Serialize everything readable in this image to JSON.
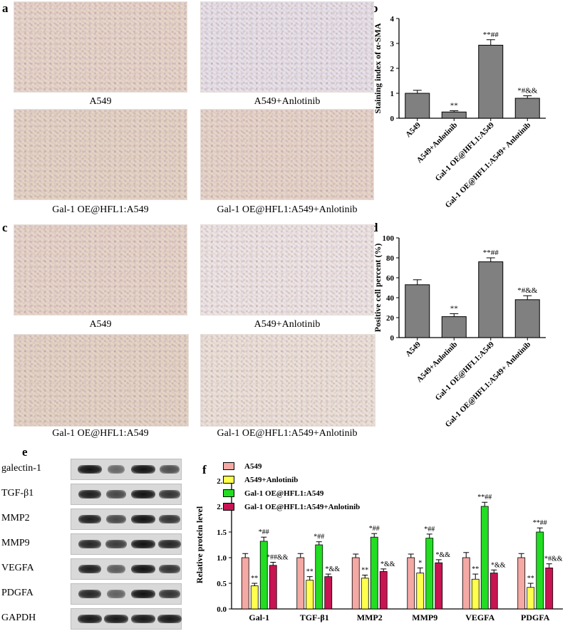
{
  "panels": {
    "a": "a",
    "b": "b",
    "c": "c",
    "d": "d",
    "e": "e",
    "f": "f"
  },
  "ihc_labels": {
    "a1": "A549",
    "a2": "A549+Anlotinib",
    "a3": "Gal-1 OE@HFL1:A549",
    "a4": "Gal-1 OE@HFL1:A549+Anlotinib",
    "c1": "A549",
    "c2": "A549+Anlotinib",
    "c3": "Gal-1 OE@HFL1:A549",
    "c4": "Gal-1 OE@HFL1:A549+Anlotinib"
  },
  "western_blot": {
    "labels": [
      "galectin-1",
      "TGF-β1",
      "MMP2",
      "MMP9",
      "VEGFA",
      "PDGFA",
      "GAPDH"
    ],
    "band_intensity": [
      [
        1.0,
        0.35,
        1.0,
        0.55
      ],
      [
        0.9,
        0.6,
        1.0,
        0.75
      ],
      [
        0.9,
        0.6,
        1.0,
        0.75
      ],
      [
        0.85,
        0.7,
        1.0,
        0.85
      ],
      [
        0.9,
        0.45,
        1.0,
        0.75
      ],
      [
        0.85,
        0.4,
        1.0,
        0.75
      ],
      [
        0.95,
        0.95,
        0.95,
        0.95
      ]
    ]
  },
  "colors": {
    "bar_gray": "#808080",
    "A549": "#f4a9a4",
    "A549_Anlotinib": "#ffff4d",
    "GalOE": "#22dd22",
    "GalOE_Anlotinib": "#c81452"
  },
  "chart_data": [
    {
      "type": "bar",
      "categories": [
        "A549",
        "A549+Anlotinib",
        "Gal-1 OE@HFL1:A549",
        "Gal-1 OE@HFL1:A549+ Anlotinib"
      ],
      "values": [
        1.0,
        0.25,
        2.93,
        0.8
      ],
      "errors": [
        0.12,
        0.05,
        0.22,
        0.1
      ],
      "annotations": [
        "",
        "**",
        "**##",
        "*#&&"
      ],
      "ylabel": "Staining index of α-SMA",
      "ylim": [
        0,
        4
      ],
      "yticks": [
        "0",
        "1",
        "2",
        "3",
        "4"
      ]
    },
    {
      "type": "bar",
      "categories": [
        "A549",
        "A549+Anlotinib",
        "Gal-1 OE@HFL1:A549",
        "Gal-1 OE@HFL1:A549+ Anlotinib"
      ],
      "values": [
        53,
        21,
        76,
        38
      ],
      "errors": [
        5,
        3,
        4,
        4
      ],
      "annotations": [
        "",
        "**",
        "**##",
        "*#&&"
      ],
      "ylabel": "Positive cell percent (%)",
      "ylim": [
        0,
        100
      ],
      "yticks": [
        "0",
        "20",
        "40",
        "60",
        "80",
        "100"
      ]
    },
    {
      "type": "bar",
      "categories": [
        "Gal-1",
        "TGF-β1",
        "MMP2",
        "MMP9",
        "VEGFA",
        "PDGFA"
      ],
      "ylabel": "Relative protein level",
      "ylim": [
        0,
        2.5
      ],
      "yticks": [
        "0.0",
        "0.5",
        "1.0",
        "1.5",
        "2.0",
        "2.5"
      ],
      "series": [
        {
          "name": "A549",
          "values": [
            1.0,
            1.0,
            1.0,
            1.0,
            1.0,
            1.0
          ],
          "errors": [
            0.08,
            0.08,
            0.07,
            0.07,
            0.1,
            0.08
          ],
          "annotations": [
            "",
            "",
            "",
            "",
            "",
            ""
          ]
        },
        {
          "name": "A549+Anlotinib",
          "values": [
            0.45,
            0.56,
            0.6,
            0.7,
            0.58,
            0.42
          ],
          "errors": [
            0.05,
            0.07,
            0.06,
            0.1,
            0.1,
            0.08
          ],
          "annotations": [
            "**",
            "**",
            "**",
            "*",
            "**",
            "**"
          ]
        },
        {
          "name": "Gal-1 OE@HFL1:A549",
          "values": [
            1.32,
            1.25,
            1.4,
            1.38,
            2.0,
            1.5
          ],
          "errors": [
            0.08,
            0.06,
            0.07,
            0.08,
            0.08,
            0.08
          ],
          "annotations": [
            "*##",
            "*##",
            "*##",
            "*##",
            "**##",
            "**##"
          ]
        },
        {
          "name": "Gal-1 OE@HFL1:A549+Anlotinib",
          "values": [
            0.85,
            0.63,
            0.73,
            0.9,
            0.7,
            0.8
          ],
          "errors": [
            0.06,
            0.05,
            0.05,
            0.06,
            0.06,
            0.08
          ],
          "annotations": [
            "*##&&",
            "*&&",
            "*&&",
            "*&&",
            "*&&",
            "*#&&"
          ]
        }
      ]
    }
  ]
}
